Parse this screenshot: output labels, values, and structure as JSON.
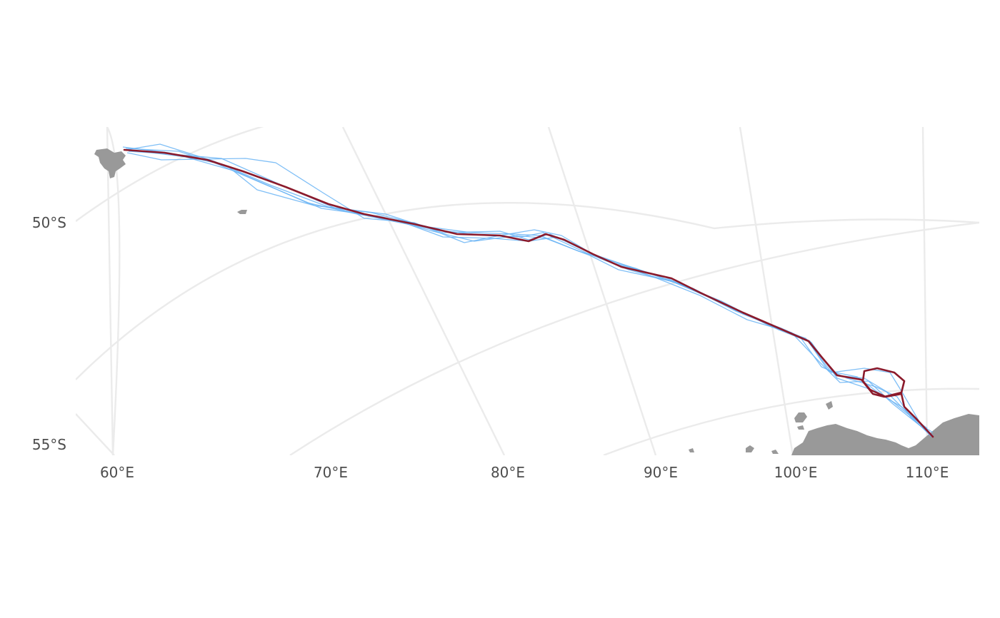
{
  "axes": {
    "x_ticks": [
      "60°E",
      "70°E",
      "80°E",
      "90°E",
      "100°E",
      "110°E"
    ],
    "y_ticks": [
      "50°S",
      "55°S"
    ]
  },
  "colors": {
    "background": "#ffffff",
    "graticule": "#ebebeb",
    "land": "#999999",
    "simulated_tracks": "#6ab4f5",
    "observed_track": "#8b1a2b",
    "axis_text": "#4d4d4d"
  },
  "map": {
    "projection": "polar stereographic (south)",
    "region": "Southern Indian Ocean, Kerguelen to East Antarctica",
    "lon_range_deg_E": [
      58,
      114
    ],
    "lat_range_deg_S": [
      47,
      56
    ],
    "grid": true
  },
  "tracks": {
    "simulated_count": 6,
    "observed_count": 1
  }
}
